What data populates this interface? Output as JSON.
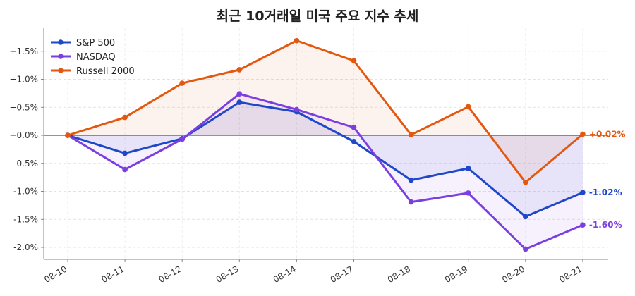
{
  "chart_data": {
    "type": "line",
    "title": "최근 10거래일 미국 주요 지수 추세",
    "xlabel": "",
    "ylabel": "",
    "categories": [
      "08-10",
      "08-11",
      "08-12",
      "08-13",
      "08-14",
      "08-17",
      "08-18",
      "08-19",
      "08-20",
      "08-21"
    ],
    "ylim": [
      -2.2,
      1.9
    ],
    "yticks": [
      -2.0,
      -1.5,
      -1.0,
      -0.5,
      0.0,
      0.5,
      1.0,
      1.5
    ],
    "ytick_labels": [
      "-2.0%",
      "-1.5%",
      "-1.0%",
      "-0.5%",
      "+0.0%",
      "+0.5%",
      "+1.0%",
      "+1.5%"
    ],
    "grid": true,
    "legend_position": "top-left",
    "series": [
      {
        "name": "S&P 500",
        "color": "#1f47c9",
        "values": [
          0.0,
          -0.32,
          -0.06,
          0.59,
          0.42,
          -0.11,
          -0.8,
          -0.59,
          -1.45,
          -1.02
        ],
        "end_label": "-1.02%"
      },
      {
        "name": "NASDAQ",
        "color": "#7b3ee0",
        "values": [
          0.0,
          -0.61,
          -0.07,
          0.74,
          0.46,
          0.14,
          -1.19,
          -1.03,
          -2.03,
          -1.6
        ],
        "end_label": "-1.60%"
      },
      {
        "name": "Russell 2000",
        "color": "#e4570f",
        "values": [
          0.0,
          0.32,
          0.93,
          1.17,
          1.69,
          1.33,
          0.01,
          0.51,
          -0.84,
          0.02
        ],
        "end_label": "+0.02%"
      }
    ]
  }
}
